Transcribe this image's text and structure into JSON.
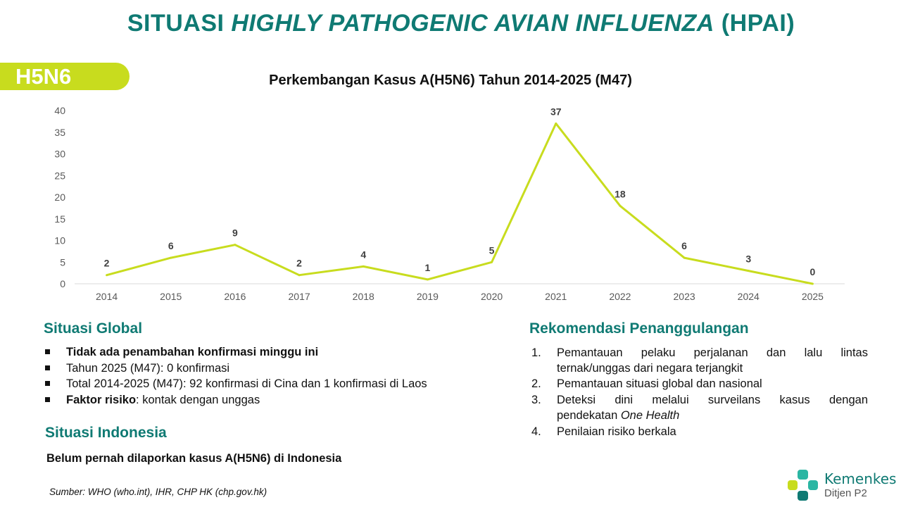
{
  "header": {
    "title_pre": "SITUASI ",
    "title_italic": "HIGHLY PATHOGENIC AVIAN INFLUENZA",
    "title_post": " (HPAI)",
    "badge": "H5N6"
  },
  "chart_data": {
    "type": "line",
    "title": "Perkembangan Kasus A(H5N6) Tahun 2014-2025 (M47)",
    "categories": [
      "2014",
      "2015",
      "2016",
      "2017",
      "2018",
      "2019",
      "2020",
      "2021",
      "2022",
      "2023",
      "2024",
      "2025"
    ],
    "values": [
      2,
      6,
      9,
      2,
      4,
      1,
      5,
      37,
      18,
      6,
      3,
      0
    ],
    "ylim": [
      0,
      40
    ],
    "yticks": [
      0,
      5,
      10,
      15,
      20,
      25,
      30,
      35,
      40
    ],
    "grid": false,
    "line_color": "#c8dc1e"
  },
  "global": {
    "heading": "Situasi Global",
    "items": [
      {
        "bold": "Tidak ada penambahan konfirmasi minggu ini",
        "text": ""
      },
      {
        "bold": "",
        "text": "Tahun 2025 (M47): 0 konfirmasi"
      },
      {
        "bold": "",
        "text": "Total 2014-2025 (M47): 92 konfirmasi di Cina dan 1 konfirmasi di Laos"
      },
      {
        "bold": "Faktor risiko",
        "text": ": kontak dengan unggas"
      }
    ]
  },
  "indonesia": {
    "heading": "Situasi Indonesia",
    "text": "Belum pernah dilaporkan kasus A(H5N6) di Indonesia"
  },
  "recommendations": {
    "heading": "Rekomendasi Penanggulangan",
    "items": [
      {
        "num": "1.",
        "line1": "Pemantauan pelaku perjalanan dan lalu lintas",
        "line2": "ternak/unggas dari negara terjangkit",
        "italic": ""
      },
      {
        "num": "2.",
        "line1": "Pemantauan situasi global dan nasional",
        "line2": "",
        "italic": ""
      },
      {
        "num": "3.",
        "line1": "Deteksi dini melalui surveilans kasus dengan",
        "line2": "pendekatan ",
        "italic": "One Health"
      },
      {
        "num": "4.",
        "line1": "Penilaian risiko berkala",
        "line2": "",
        "italic": ""
      }
    ]
  },
  "source": "Sumber: WHO (who.int), IHR, CHP HK (chp.gov.hk)",
  "logo": {
    "name": "Kemenkes",
    "sub": "Ditjen P2",
    "icon": "kemenkes-cross-icon"
  },
  "colors": {
    "teal": "#0f7a73",
    "lime": "#c8dc1e"
  }
}
